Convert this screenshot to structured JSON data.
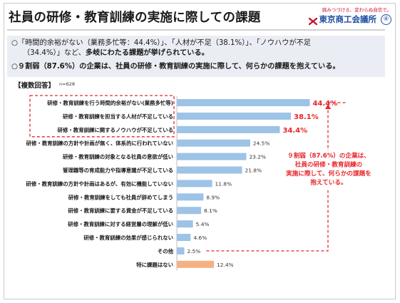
{
  "header": {
    "title": "社員の研修・教育訓練の実施に際しての課題",
    "logo_tagline": "挑みつづける、変わらぬ自信で。",
    "logo_name": "東京商工会議所",
    "page_number": "④"
  },
  "summary": {
    "line1": "○「時間的余裕がない（業務多忙等：44.4%）」、「人材が不足（38.1%）」、「ノウハウが不足",
    "line2_a": "（34.4%）」など、",
    "line2_b": "多岐にわたる課題が挙げられている。",
    "line3": "○９割弱（87.6%）の企業は、社員の研修・教育訓練の実施に際して、何らかの課題を抱えている。"
  },
  "question_label": "【複数回答】",
  "n_label": "n=628",
  "callout": {
    "lines": [
      "９割弱（87.6%）の企業は、",
      "社員の研修・教育訓練の",
      "実施に際して、何らかの課題を",
      "抱えている。"
    ]
  },
  "colors": {
    "bar_blue": "#9dc3e6",
    "bar_orange": "#f4b183",
    "highlight_red": "#e8262b",
    "summary_bg": "#eaeef4"
  },
  "chart_data": {
    "type": "bar",
    "orientation": "horizontal",
    "categories": [
      "研修・教育訓練を行う時間的余裕がない(業務多忙等)",
      "研修・教育訓練を担当する人材が不足している",
      "研修・教育訓練に関するノウハウが不足している",
      "研修・教育訓練の方針や計画が無く、体系的に行われていない",
      "研修・教育訓練の対象となる社員の意欲が低い",
      "管理職等の育成能力や指導意識が不足している",
      "研修・教育訓練の方針や計画はあるが、有効に機能していない",
      "研修・教育訓練をしても社員が辞めてしまう",
      "研修・教育訓練に要する資金が不足している",
      "研修・教育訓練に対する経営層の理解が低い",
      "研修・教育訓練の効果が感じられない",
      "その他",
      "特に課題はない"
    ],
    "values": [
      44.4,
      38.1,
      34.4,
      24.5,
      23.2,
      21.8,
      11.8,
      8.9,
      8.1,
      5.4,
      4.6,
      2.5,
      12.4
    ],
    "value_labels": [
      "44.4%",
      "38.1%",
      "34.4%",
      "24.5%",
      "23.2%",
      "21.8%",
      "11.8%",
      "8.9%",
      "8.1%",
      "5.4%",
      "4.6%",
      "2.5%",
      "12.4%"
    ],
    "highlighted_top": 3,
    "special_last": true,
    "xlim": [
      0,
      50
    ],
    "grid": false,
    "legend": "none"
  }
}
